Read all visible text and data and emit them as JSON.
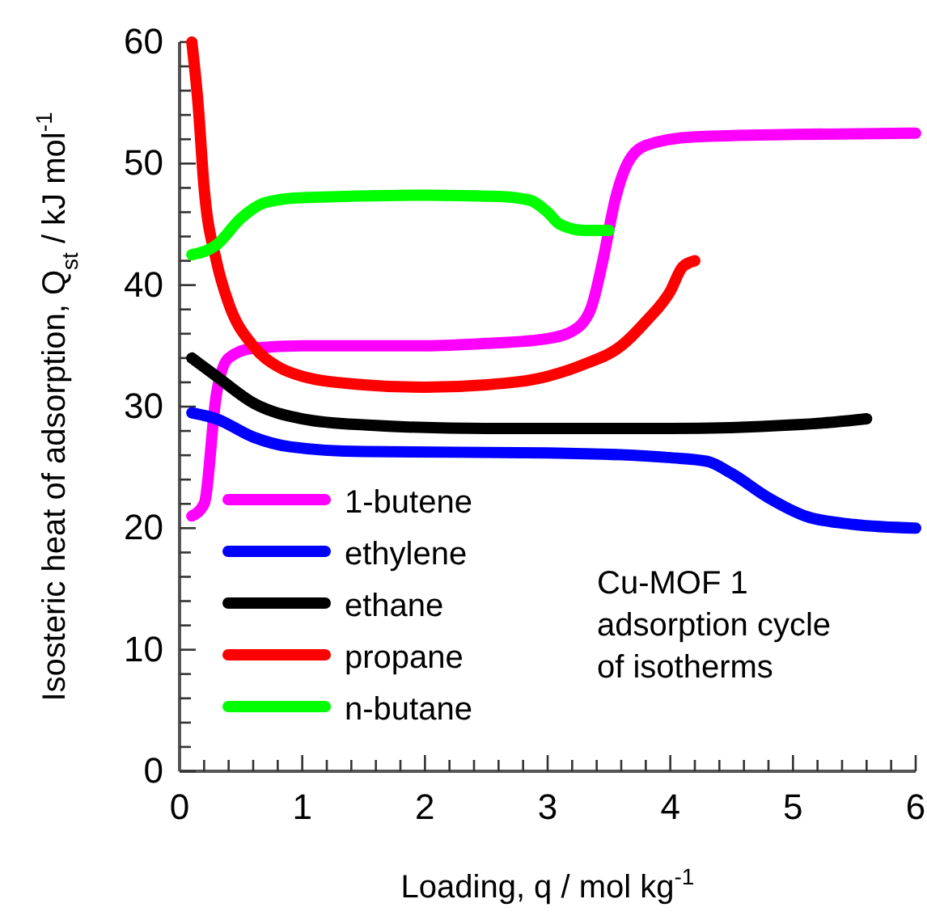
{
  "chart_data": {
    "type": "line",
    "xlabel": "Loading, q  / mol kg$^{-1}$",
    "ylabel": "Isosteric heat of adsorption, Q$_{st}$ / kJ mol$^{-1}$",
    "xlim": [
      0,
      6
    ],
    "ylim": [
      0,
      60
    ],
    "xticks": [
      0,
      {
        "value": 0.2,
        "label": null
      },
      {
        "value": 0.4,
        "label": null
      },
      {
        "value": 0.6,
        "label": null
      },
      {
        "value": 0.8,
        "label": null
      },
      1,
      {
        "value": 1.2,
        "label": null
      },
      {
        "value": 1.4,
        "label": null
      },
      {
        "value": 1.6,
        "label": null
      },
      {
        "value": 1.8,
        "label": null
      },
      2,
      {
        "value": 2.2,
        "label": null
      },
      {
        "value": 2.4,
        "label": null
      },
      {
        "value": 2.6,
        "label": null
      },
      {
        "value": 2.8,
        "label": null
      },
      3,
      {
        "value": 3.2,
        "label": null
      },
      {
        "value": 3.4,
        "label": null
      },
      {
        "value": 3.6,
        "label": null
      },
      {
        "value": 3.8,
        "label": null
      },
      4,
      {
        "value": 4.2,
        "label": null
      },
      {
        "value": 4.4,
        "label": null
      },
      {
        "value": 4.6,
        "label": null
      },
      {
        "value": 4.8,
        "label": null
      },
      5,
      {
        "value": 5.2,
        "label": null
      },
      {
        "value": 5.4,
        "label": null
      },
      {
        "value": 5.6,
        "label": null
      },
      {
        "value": 5.8,
        "label": null
      },
      6
    ],
    "yticks": [
      0,
      {
        "value": 2,
        "label": null
      },
      {
        "value": 4,
        "label": null
      },
      {
        "value": 6,
        "label": null
      },
      {
        "value": 8,
        "label": null
      },
      10,
      {
        "value": 12,
        "label": null
      },
      {
        "value": 14,
        "label": null
      },
      {
        "value": 16,
        "label": null
      },
      {
        "value": 18,
        "label": null
      },
      20,
      {
        "value": 22,
        "label": null
      },
      {
        "value": 24,
        "label": null
      },
      {
        "value": 26,
        "label": null
      },
      {
        "value": 28,
        "label": null
      },
      30,
      {
        "value": 32,
        "label": null
      },
      {
        "value": 34,
        "label": null
      },
      {
        "value": 36,
        "label": null
      },
      {
        "value": 38,
        "label": null
      },
      40,
      {
        "value": 42,
        "label": null
      },
      {
        "value": 44,
        "label": null
      },
      {
        "value": 46,
        "label": null
      },
      {
        "value": 48,
        "label": null
      },
      50,
      {
        "value": 52,
        "label": null
      },
      {
        "value": 54,
        "label": null
      },
      {
        "value": 56,
        "label": null
      },
      {
        "value": 58,
        "label": null
      },
      60
    ],
    "grid": false,
    "legend": "bottom left",
    "marker": "none",
    "line_style": "solid",
    "annotations": [
      "Cu-MOF 1",
      "adsorption cycle",
      "of isotherms"
    ],
    "series": [
      {
        "name": "1-butene",
        "color": "#ff00ff",
        "x": [
          0.1,
          0.2,
          0.3,
          0.4,
          0.6,
          1,
          2,
          2.5,
          3,
          3.2,
          3.35,
          3.45,
          3.55,
          3.65,
          3.8,
          4.2,
          5,
          6
        ],
        "values": [
          21,
          22,
          31,
          34,
          34.8,
          35,
          35,
          35.2,
          35.6,
          36.2,
          38,
          42,
          47,
          50,
          51.5,
          52.2,
          52.4,
          52.5
        ]
      },
      {
        "name": "ethylene",
        "color": "#0000ff",
        "x": [
          0.1,
          0.3,
          0.6,
          0.9,
          1.5,
          3,
          4,
          4.3,
          4.5,
          4.8,
          5.1,
          5.5,
          6
        ],
        "values": [
          29.5,
          29,
          27.5,
          26.7,
          26.3,
          26.2,
          25.8,
          25.5,
          24.5,
          22.5,
          21,
          20.3,
          20
        ]
      },
      {
        "name": "ethane",
        "color": "#000000",
        "x": [
          0.1,
          0.3,
          0.6,
          1,
          1.5,
          2.5,
          4,
          5,
          5.3,
          5.6
        ],
        "values": [
          34,
          32.5,
          30.3,
          29,
          28.5,
          28.2,
          28.2,
          28.5,
          28.7,
          29
        ]
      },
      {
        "name": "propane",
        "color": "#ff0000",
        "x": [
          0.1,
          0.15,
          0.2,
          0.3,
          0.4,
          0.6,
          0.8,
          1,
          1.5,
          2,
          2.5,
          3,
          3.3,
          3.6,
          3.8,
          4,
          4.1,
          4.2
        ],
        "values": [
          60,
          55,
          48,
          42,
          38.5,
          35,
          33.3,
          32.5,
          31.8,
          31.6,
          31.8,
          32.5,
          33.5,
          35,
          37,
          39.5,
          41.5,
          42
        ]
      },
      {
        "name": "n-butane",
        "color": "#00ff00",
        "x": [
          0.1,
          0.3,
          0.5,
          0.7,
          1,
          2,
          2.6,
          2.85,
          3,
          3.1,
          3.3,
          3.5
        ],
        "values": [
          42.5,
          43.3,
          45.5,
          46.8,
          47.2,
          47.4,
          47.3,
          47,
          46,
          45,
          44.5,
          44.5
        ]
      }
    ]
  }
}
